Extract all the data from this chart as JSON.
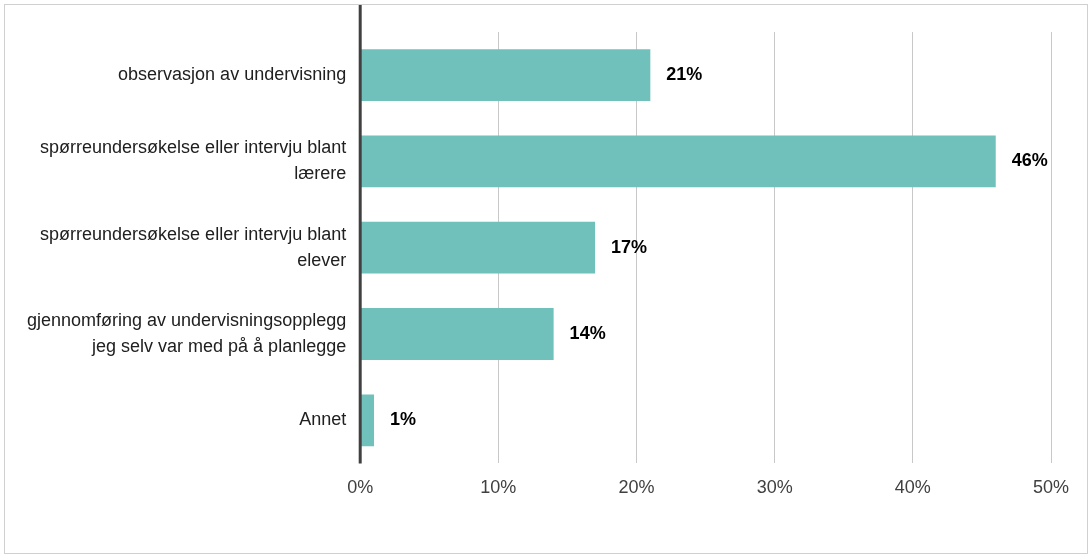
{
  "chart_data": {
    "type": "bar",
    "orientation": "horizontal",
    "categories": [
      "observasjon av undervisning",
      "spørreundersøkelse eller intervju blant lærere",
      "spørreundersøkelse eller intervju blant elever",
      "gjennomføring av undervisningsopplegg jeg selv var med på å planlegge",
      "Annet"
    ],
    "values": [
      21,
      46,
      17,
      14,
      1
    ],
    "value_labels": [
      "21%",
      "46%",
      "17%",
      "14%",
      "1%"
    ],
    "color": "#70c1bb",
    "xlim": [
      0,
      50
    ],
    "xticks": [
      {
        "value": 0,
        "label": "0%"
      },
      {
        "value": 10,
        "label": "10%"
      },
      {
        "value": 20,
        "label": "20%"
      },
      {
        "value": 30,
        "label": "30%"
      },
      {
        "value": 40,
        "label": "40%"
      },
      {
        "value": 50,
        "label": "50%"
      }
    ],
    "grid": "x",
    "legend": false
  }
}
